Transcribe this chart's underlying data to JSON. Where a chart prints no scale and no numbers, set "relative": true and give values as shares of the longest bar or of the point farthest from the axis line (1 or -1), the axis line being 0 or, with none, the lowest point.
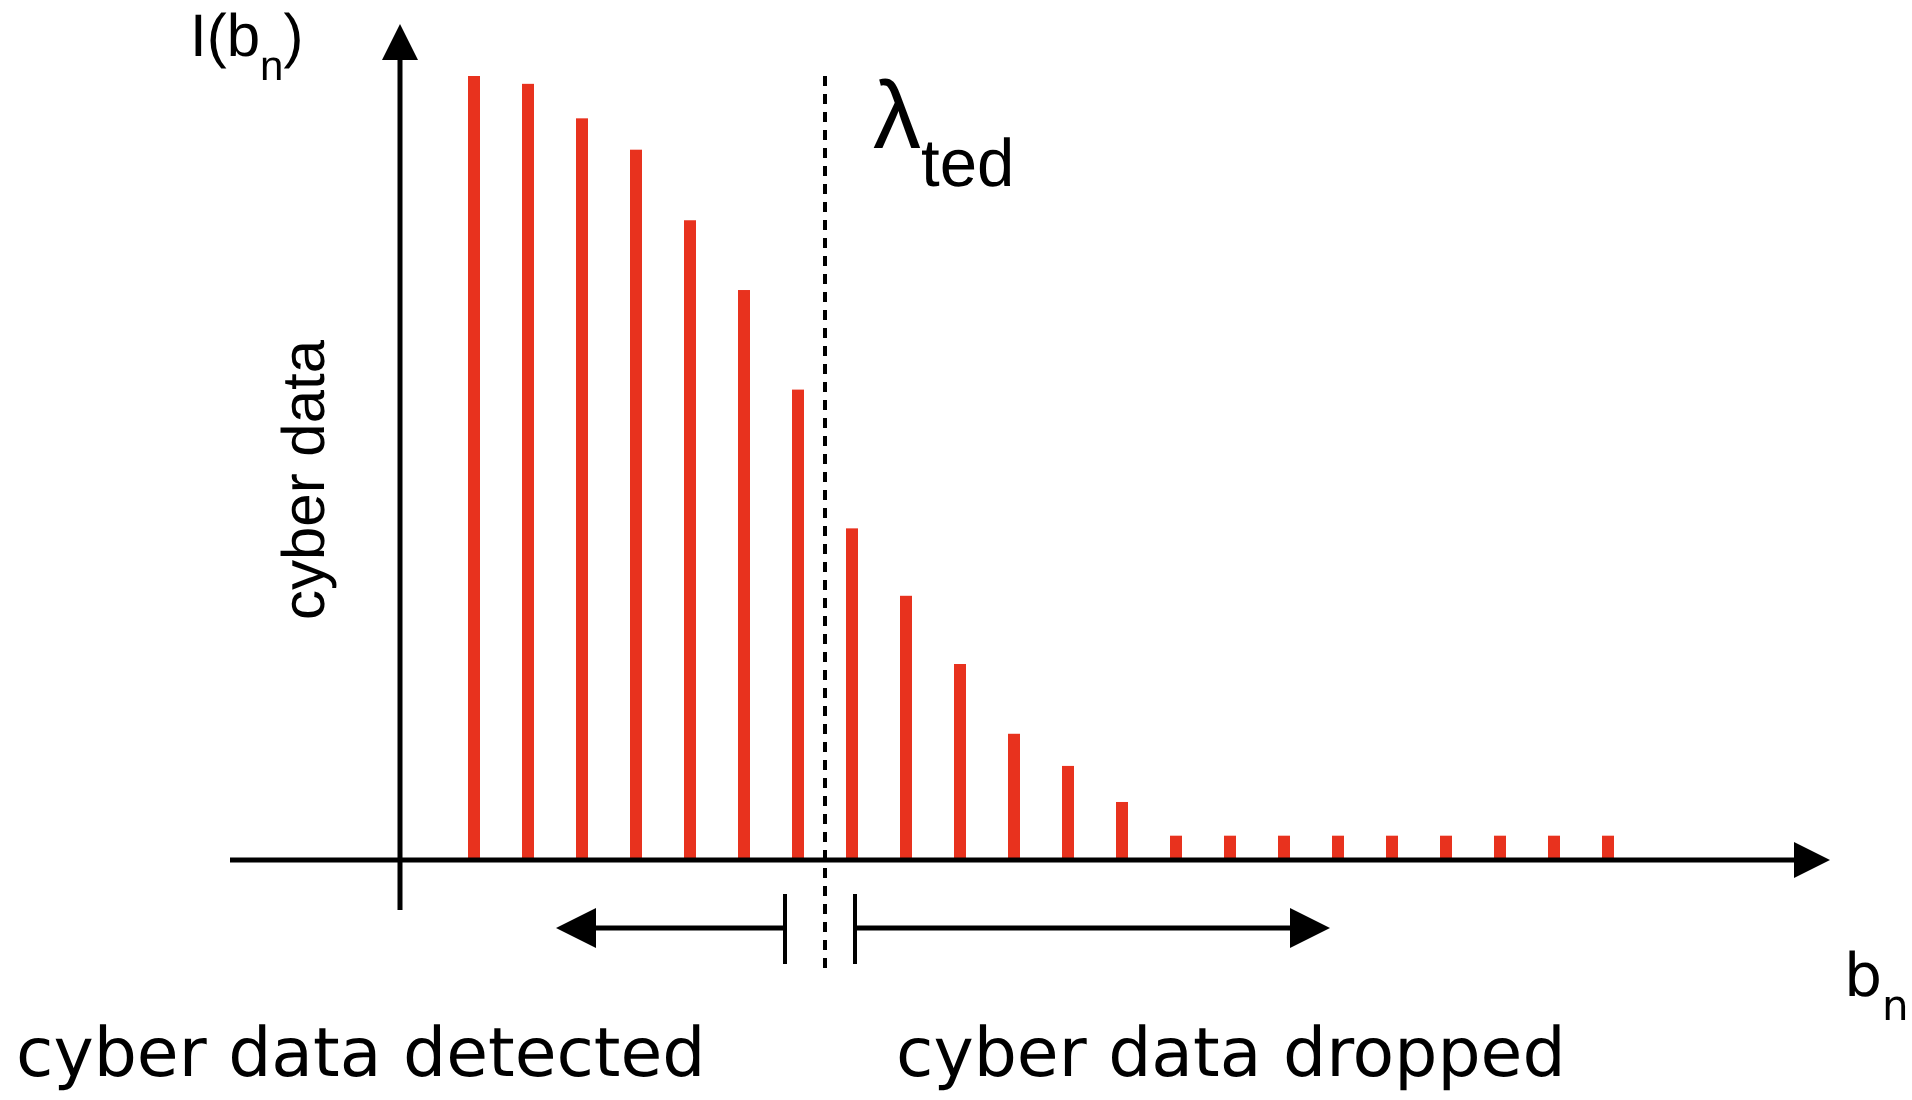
{
  "chart_data": {
    "type": "bar",
    "relative": true,
    "xlabel": "b$_{n}$",
    "ylabel": "I(b$_{n}$)",
    "categories": [
      null,
      null,
      null,
      null,
      null,
      null,
      null,
      null,
      null,
      null,
      null,
      null,
      null,
      null,
      null,
      null,
      null,
      null,
      null,
      null,
      null,
      null
    ],
    "values": [
      1,
      0.99,
      0.946,
      0.906,
      0.816,
      0.727,
      0.6,
      0.423,
      0.337,
      0.25,
      0.161,
      0.12,
      0.074,
      0.031,
      0.031,
      0.031,
      0.031,
      0.031,
      0.031,
      0.031,
      0.031,
      0.031
    ],
    "color": "#e8321e",
    "annotations": [
      "cyber data",
      "cyber data detected",
      "cyber data dropped",
      "λ$_{ted}$"
    ]
  }
}
